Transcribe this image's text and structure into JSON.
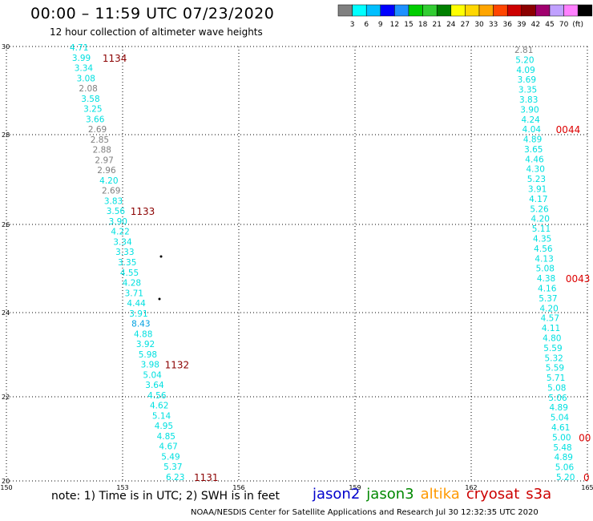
{
  "title": "00:00 – 11:59 UTC 07/23/2020",
  "subtitle": "12 hour collection of altimeter wave heights",
  "colorbar": {
    "colors": [
      "#808080",
      "#00ffff",
      "#00bfff",
      "#0000ff",
      "#1e90ff",
      "#00cd00",
      "#32cd32",
      "#008000",
      "#ffff00",
      "#ffd700",
      "#ffa500",
      "#ff4500",
      "#cd0000",
      "#8b0000",
      "#a0006e",
      "#c0a0ff",
      "#ff80ff",
      "#000000"
    ],
    "labels": [
      "3",
      "6",
      "9",
      "12",
      "15",
      "18",
      "21",
      "24",
      "27",
      "30",
      "33",
      "36",
      "39",
      "42",
      "45",
      "70",
      "(ft)"
    ]
  },
  "axes": {
    "x_ticks": [
      "150",
      "153",
      "156",
      "159",
      "162",
      "165"
    ],
    "y_ticks": [
      "30",
      "28",
      "26",
      "24",
      "22",
      "20"
    ]
  },
  "tracks": [
    {
      "name": "track-1131-1134",
      "points": [
        {
          "v": "4.71",
          "c": "#00e0e0"
        },
        {
          "v": "3.99",
          "c": "#00e0e0"
        },
        {
          "v": "3.34",
          "c": "#00e0e0"
        },
        {
          "v": "3.08",
          "c": "#00e0e0"
        },
        {
          "v": "2.08",
          "c": "#808080"
        },
        {
          "v": "3.58",
          "c": "#00e0e0"
        },
        {
          "v": "3.25",
          "c": "#00e0e0"
        },
        {
          "v": "3.66",
          "c": "#00e0e0"
        },
        {
          "v": "2.69",
          "c": "#808080"
        },
        {
          "v": "2.85",
          "c": "#808080"
        },
        {
          "v": "2.88",
          "c": "#808080"
        },
        {
          "v": "2.97",
          "c": "#808080"
        },
        {
          "v": "2.96",
          "c": "#808080"
        },
        {
          "v": "4.20",
          "c": "#00e0e0"
        },
        {
          "v": "2.69",
          "c": "#808080"
        },
        {
          "v": "3.83",
          "c": "#00e0e0"
        },
        {
          "v": "3.56",
          "c": "#00e0e0"
        },
        {
          "v": "3.90",
          "c": "#00e0e0"
        },
        {
          "v": "4.22",
          "c": "#00e0e0"
        },
        {
          "v": "3.34",
          "c": "#00e0e0"
        },
        {
          "v": "3.33",
          "c": "#00e0e0"
        },
        {
          "v": "3.35",
          "c": "#00e0e0"
        },
        {
          "v": "4.55",
          "c": "#00e0e0"
        },
        {
          "v": "4.28",
          "c": "#00e0e0"
        },
        {
          "v": "3.71",
          "c": "#00e0e0"
        },
        {
          "v": "4.44",
          "c": "#00e0e0"
        },
        {
          "v": "3.91",
          "c": "#00e0e0"
        },
        {
          "v": "8.43",
          "c": "#00a0e0"
        },
        {
          "v": "4.88",
          "c": "#00e0e0"
        },
        {
          "v": "3.92",
          "c": "#00e0e0"
        },
        {
          "v": "5.98",
          "c": "#00e0e0"
        },
        {
          "v": "3.98",
          "c": "#00e0e0"
        },
        {
          "v": "5.04",
          "c": "#00e0e0"
        },
        {
          "v": "3.64",
          "c": "#00e0e0"
        },
        {
          "v": "4.56",
          "c": "#00e0e0"
        },
        {
          "v": "4.62",
          "c": "#00e0e0"
        },
        {
          "v": "5.14",
          "c": "#00e0e0"
        },
        {
          "v": "4.95",
          "c": "#00e0e0"
        },
        {
          "v": "4.85",
          "c": "#00e0e0"
        },
        {
          "v": "4.67",
          "c": "#00e0e0"
        },
        {
          "v": "5.49",
          "c": "#00e0e0"
        },
        {
          "v": "5.37",
          "c": "#00e0e0"
        },
        {
          "v": "6.23",
          "c": "#00e0e0"
        }
      ],
      "times": [
        {
          "t": "1134",
          "at": 1
        },
        {
          "t": "1133",
          "at": 16
        },
        {
          "t": "1132",
          "at": 31
        },
        {
          "t": "1131",
          "at": 43
        }
      ]
    },
    {
      "name": "track-0043-0044",
      "points": [
        {
          "v": "2.81",
          "c": "#808080"
        },
        {
          "v": "5.20",
          "c": "#00e0e0"
        },
        {
          "v": "4.09",
          "c": "#00e0e0"
        },
        {
          "v": "3.69",
          "c": "#00e0e0"
        },
        {
          "v": "3.35",
          "c": "#00e0e0"
        },
        {
          "v": "3.83",
          "c": "#00e0e0"
        },
        {
          "v": "3.90",
          "c": "#00e0e0"
        },
        {
          "v": "4.24",
          "c": "#00e0e0"
        },
        {
          "v": "4.04",
          "c": "#00e0e0"
        },
        {
          "v": "4.89",
          "c": "#00e0e0"
        },
        {
          "v": "3.65",
          "c": "#00e0e0"
        },
        {
          "v": "4.46",
          "c": "#00e0e0"
        },
        {
          "v": "4.30",
          "c": "#00e0e0"
        },
        {
          "v": "5.23",
          "c": "#00e0e0"
        },
        {
          "v": "3.91",
          "c": "#00e0e0"
        },
        {
          "v": "4.17",
          "c": "#00e0e0"
        },
        {
          "v": "5.26",
          "c": "#00e0e0"
        },
        {
          "v": "4.20",
          "c": "#00e0e0"
        },
        {
          "v": "5.11",
          "c": "#00e0e0"
        },
        {
          "v": "4.35",
          "c": "#00e0e0"
        },
        {
          "v": "4.56",
          "c": "#00e0e0"
        },
        {
          "v": "4.13",
          "c": "#00e0e0"
        },
        {
          "v": "5.08",
          "c": "#00e0e0"
        },
        {
          "v": "4.38",
          "c": "#00e0e0"
        },
        {
          "v": "4.16",
          "c": "#00e0e0"
        },
        {
          "v": "5.37",
          "c": "#00e0e0"
        },
        {
          "v": "4.20",
          "c": "#00e0e0"
        },
        {
          "v": "4.57",
          "c": "#00e0e0"
        },
        {
          "v": "4.11",
          "c": "#00e0e0"
        },
        {
          "v": "4.80",
          "c": "#00e0e0"
        },
        {
          "v": "5.59",
          "c": "#00e0e0"
        },
        {
          "v": "5.32",
          "c": "#00e0e0"
        },
        {
          "v": "5.59",
          "c": "#00e0e0"
        },
        {
          "v": "5.71",
          "c": "#00e0e0"
        },
        {
          "v": "5.08",
          "c": "#00e0e0"
        },
        {
          "v": "5.06",
          "c": "#00e0e0"
        },
        {
          "v": "4.89",
          "c": "#00e0e0"
        },
        {
          "v": "5.04",
          "c": "#00e0e0"
        },
        {
          "v": "4.61",
          "c": "#00e0e0"
        },
        {
          "v": "5.00",
          "c": "#00e0e0"
        },
        {
          "v": "5.48",
          "c": "#00e0e0"
        },
        {
          "v": "4.89",
          "c": "#00e0e0"
        },
        {
          "v": "5.06",
          "c": "#00e0e0"
        },
        {
          "v": "5.20",
          "c": "#00e0e0"
        }
      ],
      "times": [
        {
          "t": "0044",
          "at": 8
        },
        {
          "t": "0043",
          "at": 23
        },
        {
          "t": "00",
          "at": 39
        },
        {
          "t": "0",
          "at": 43
        }
      ]
    }
  ],
  "footer": {
    "note": "note: 1) Time is in UTC; 2) SWH is in feet",
    "satellites": [
      {
        "name": "jason2",
        "color": "#0000cc"
      },
      {
        "name": "jason3",
        "color": "#008800"
      },
      {
        "name": "altika",
        "color": "#ff9900"
      },
      {
        "name": "cryosat",
        "color": "#cc0000"
      },
      {
        "name": "s3a",
        "color": "#cc0000"
      }
    ],
    "credit": "NOAA/NESDIS Center for Satellite Applications and Research   Jul 30 12:32:35 UTC 2020"
  }
}
